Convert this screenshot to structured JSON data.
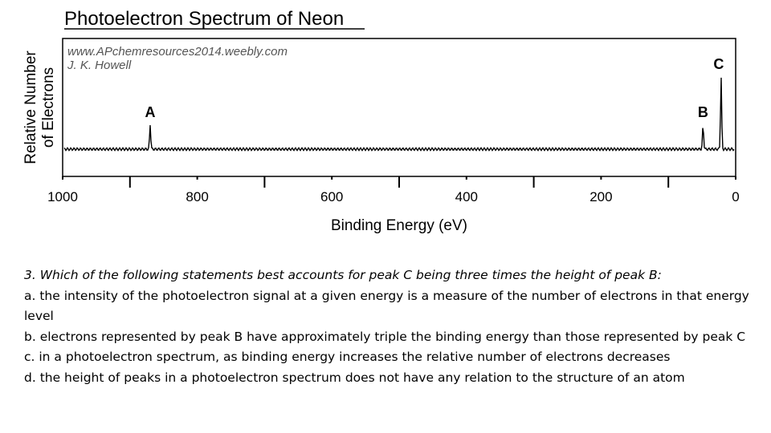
{
  "chart_data": {
    "type": "line",
    "title": "Photoelectron Spectrum of Neon",
    "credit_lines": [
      "www.APchemresources2014.weebly.com",
      "J. K. Howell"
    ],
    "xlabel": "Binding Energy (eV)",
    "ylabel_lines": [
      "Relative Number",
      "of Electrons"
    ],
    "x_reversed": true,
    "xlim": [
      1000,
      0
    ],
    "ylim": [
      0,
      4
    ],
    "major_ticks": [
      1000,
      800,
      600,
      400,
      200,
      0
    ],
    "tick_labels": [
      "1000",
      "800",
      "600",
      "400",
      "200",
      "0"
    ],
    "minor_ticks": [
      900,
      700,
      500,
      300,
      100
    ],
    "grid": false,
    "peaks": [
      {
        "label": "A",
        "x": 870,
        "y": 1
      },
      {
        "label": "B",
        "x": 48.5,
        "y": 1
      },
      {
        "label": "C",
        "x": 21.6,
        "y": 3
      }
    ]
  },
  "question": {
    "stem": "3.  Which of the following statements best accounts for peak C being three times the height of peak B:",
    "options": [
      "a. the intensity of the photoelectron signal at a given energy is a measure of the number of electrons in that energy level",
      "b. electrons represented by peak B have approximately triple the binding energy than those represented by peak C",
      "c. in a photoelectron spectrum, as binding energy increases the relative number of electrons decreases",
      "d. the height of peaks in a photoelectron spectrum does not have any relation to the structure of an atom"
    ]
  }
}
